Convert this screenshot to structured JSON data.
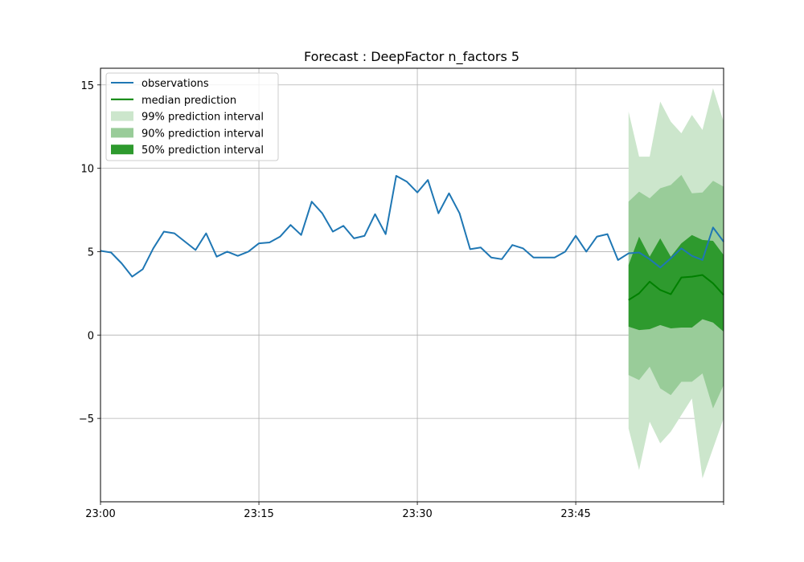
{
  "chart_data": {
    "type": "line",
    "title": "Forecast : DeepFactor n_factors 5",
    "x_axis": {
      "start": "23:00",
      "step_minutes": 1,
      "tick_labels": [
        "23:00",
        "23:15",
        "23:30",
        "23:45"
      ],
      "end_tick_label": ""
    },
    "y_axis": {
      "ylim": [
        -10,
        16
      ],
      "ticks": [
        -5,
        0,
        5,
        10,
        15
      ],
      "tick_labels": [
        "−5",
        "0",
        "5",
        "10",
        "15"
      ]
    },
    "grid": true,
    "legend_position": "upper-left",
    "observations": {
      "name": "observations",
      "color": "#1f77b4",
      "x_minutes": [
        0,
        1,
        2,
        3,
        4,
        5,
        6,
        7,
        8,
        9,
        10,
        11,
        12,
        13,
        14,
        15,
        16,
        17,
        18,
        19,
        20,
        21,
        22,
        23,
        24,
        25,
        26,
        27,
        28,
        29,
        30,
        31,
        32,
        33,
        34,
        35,
        36,
        37,
        38,
        39,
        40,
        41,
        42,
        43,
        44,
        45,
        46,
        47,
        48,
        49,
        50,
        51,
        52,
        53,
        54,
        55,
        56,
        57,
        58,
        59
      ],
      "values": [
        5.05,
        4.95,
        4.3,
        3.5,
        3.95,
        5.2,
        6.2,
        6.1,
        5.6,
        5.1,
        6.1,
        4.7,
        5.0,
        4.75,
        5.0,
        5.5,
        5.55,
        5.9,
        6.6,
        6.0,
        8.0,
        7.3,
        6.2,
        6.55,
        5.8,
        5.95,
        7.25,
        6.05,
        9.55,
        9.2,
        8.55,
        9.3,
        7.3,
        8.5,
        7.3,
        5.15,
        5.25,
        4.65,
        4.55,
        5.4,
        5.2,
        4.65,
        4.65,
        4.65,
        5.0,
        5.95,
        5.0,
        5.9,
        6.05,
        4.5,
        4.9,
        4.95,
        4.55,
        4.05,
        4.6,
        5.2,
        4.75,
        4.5,
        6.45,
        5.6
      ]
    },
    "forecast": {
      "x_minutes": [
        50,
        51,
        52,
        53,
        54,
        55,
        56,
        57,
        58,
        59
      ],
      "median": {
        "name": "median prediction",
        "color": "#008000",
        "values": [
          2.1,
          2.5,
          3.2,
          2.7,
          2.45,
          3.45,
          3.5,
          3.6,
          3.1,
          2.4
        ]
      },
      "intervals": [
        {
          "name": "99% prediction interval",
          "color": "#cce6cc",
          "lower": [
            -5.6,
            -8.1,
            -5.2,
            -6.5,
            -5.8,
            -4.8,
            -3.8,
            -8.6,
            -6.8,
            -5.0
          ],
          "upper": [
            13.4,
            10.7,
            10.7,
            14.0,
            12.8,
            12.1,
            13.2,
            12.3,
            14.8,
            12.8
          ]
        },
        {
          "name": "90% prediction interval",
          "color": "#99cc99",
          "lower": [
            -2.4,
            -2.7,
            -1.9,
            -3.2,
            -3.6,
            -2.8,
            -2.8,
            -2.3,
            -4.4,
            -3.0
          ],
          "upper": [
            8.0,
            8.6,
            8.2,
            8.8,
            9.0,
            9.6,
            8.5,
            8.55,
            9.25,
            8.9
          ]
        },
        {
          "name": "50% prediction interval",
          "color": "#2e9a2e",
          "lower": [
            0.5,
            0.3,
            0.35,
            0.6,
            0.4,
            0.45,
            0.45,
            0.95,
            0.75,
            0.2
          ],
          "upper": [
            4.2,
            5.9,
            4.7,
            5.8,
            4.7,
            5.5,
            6.0,
            5.7,
            5.65,
            4.8
          ]
        }
      ]
    }
  }
}
